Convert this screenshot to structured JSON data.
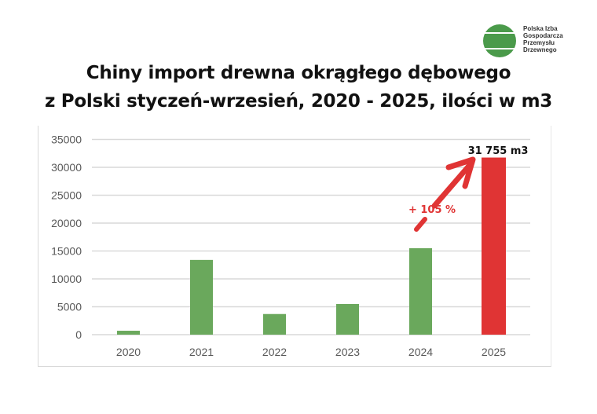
{
  "logo": {
    "lines": [
      "Polska Izba",
      "Gospodarcza",
      "Przemysłu",
      "Drzewnego"
    ],
    "color": "#4a9a4a"
  },
  "title": {
    "line1": "Chiny import drewna okrągłego dębowego",
    "line2": "z Polski styczeń-wrzesień, 2020 - 2025, ilości w m3"
  },
  "annotations": {
    "value_label": "31 755 m3",
    "growth_label": "+ 105 %"
  },
  "colors": {
    "bar_green": "#6aa85c",
    "bar_red": "#e03434",
    "gridline": "#d9d9d9",
    "axis_text": "#595959"
  },
  "chart_data": {
    "type": "bar",
    "title": "Chiny import drewna okrągłego dębowego z Polski styczeń-wrzesień, 2020 - 2025, ilości w m3",
    "categories": [
      "2020",
      "2021",
      "2022",
      "2023",
      "2024",
      "2025"
    ],
    "values": [
      700,
      13400,
      3700,
      5500,
      15500,
      31755
    ],
    "bar_colors": [
      "#6aa85c",
      "#6aa85c",
      "#6aa85c",
      "#6aa85c",
      "#6aa85c",
      "#e03434"
    ],
    "xlabel": "",
    "ylabel": "",
    "ylim": [
      0,
      35000
    ],
    "yticks": [
      0,
      5000,
      10000,
      15000,
      20000,
      25000,
      30000,
      35000
    ],
    "grid": true,
    "legend": "none",
    "annotations": [
      {
        "text": "31 755 m3",
        "target": "2025"
      },
      {
        "text": "+ 105 %",
        "type": "arrow",
        "from": "2024",
        "to": "2025"
      }
    ]
  }
}
